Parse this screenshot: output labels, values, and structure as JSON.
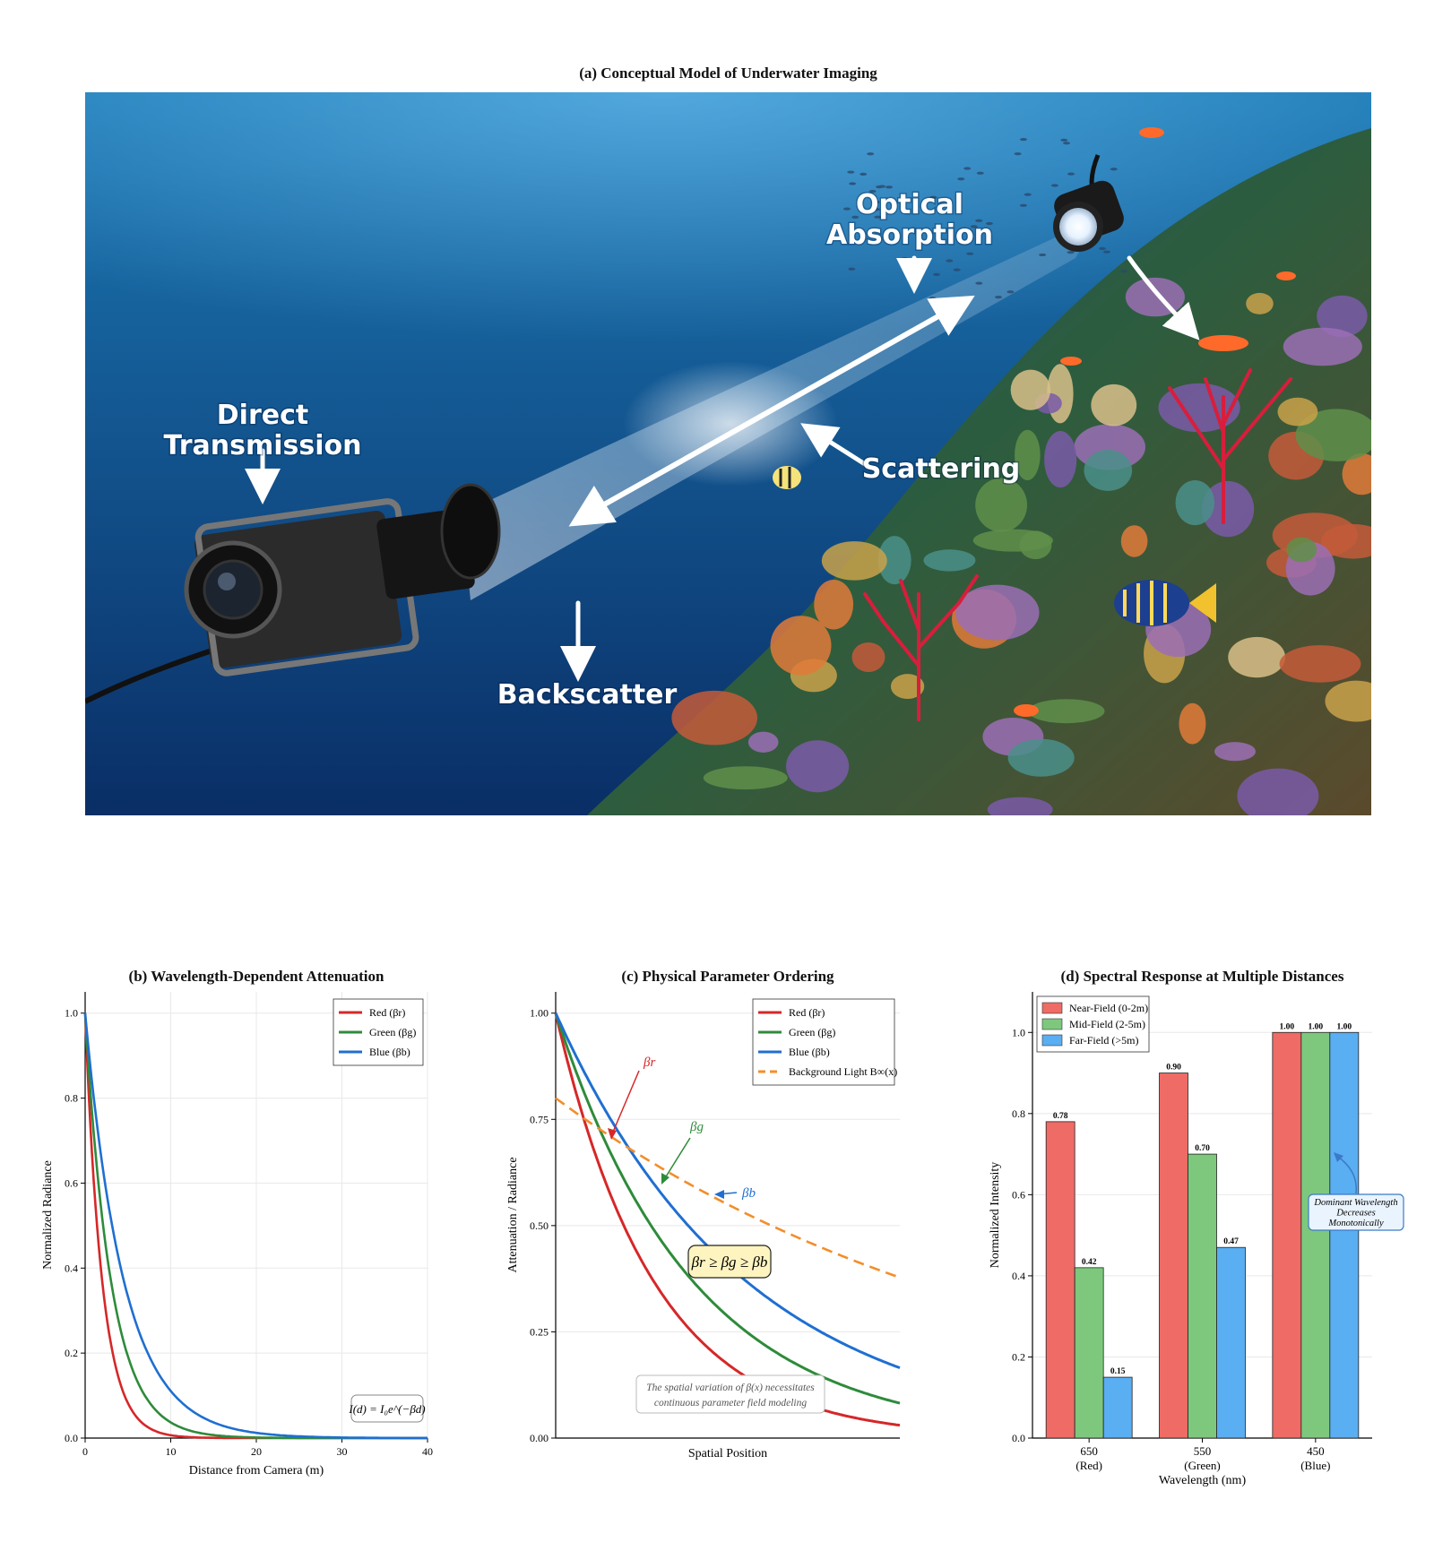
{
  "figure": {
    "panel_a": {
      "title": "(a) Conceptual Model of Underwater Imaging",
      "labels": {
        "direct": [
          "Direct",
          "Transmission"
        ],
        "absorption": [
          "Optical",
          "Absorption"
        ],
        "scattering": "Scattering",
        "backscatter": "Backscatter"
      },
      "colors": {
        "water_top": "#1b78b4",
        "water_bottom": "#0a2e66",
        "coral_red": "#d81e3c"
      }
    }
  },
  "chart_data": [
    {
      "id": "b",
      "type": "line",
      "title": "(b) Wavelength-Dependent Attenuation",
      "xlabel": "Distance from Camera (m)",
      "ylabel": "Normalized Radiance",
      "xlim": [
        0,
        40
      ],
      "ylim": [
        0,
        1.05
      ],
      "xticks": [
        0,
        10,
        20,
        30,
        40
      ],
      "yticks": [
        0.0,
        0.2,
        0.4,
        0.6,
        0.8,
        1.0
      ],
      "ytick_labels": [
        "0.0",
        "0.2",
        "0.4",
        "0.6",
        "0.8",
        "1.0"
      ],
      "grid": true,
      "legend": "top-right",
      "series": [
        {
          "name": "Red (βr)",
          "color": "#d62728",
          "model": "exp",
          "beta": 0.5
        },
        {
          "name": "Green (βg)",
          "color": "#2e8b3a",
          "model": "exp",
          "beta": 0.33
        },
        {
          "name": "Blue (βb)",
          "color": "#1f6fd1",
          "model": "exp",
          "beta": 0.22
        }
      ],
      "annotation": "I(d) = I₀e^(−βd)"
    },
    {
      "id": "c",
      "type": "line",
      "title": "(c) Physical Parameter Ordering",
      "xlabel": "Spatial Position",
      "ylabel": "Attenuation / Radiance",
      "xlim": [
        0,
        1
      ],
      "ylim": [
        0,
        1.05
      ],
      "yticks": [
        0.0,
        0.25,
        0.5,
        0.75,
        1.0
      ],
      "ytick_labels": [
        "0.00",
        "0.25",
        "0.50",
        "0.75",
        "1.00"
      ],
      "grid": true,
      "legend": "top-right",
      "series": [
        {
          "name": "Red (βr)",
          "color": "#d62728",
          "model": "exp",
          "beta": 3.5,
          "a": 1.0
        },
        {
          "name": "Green (βg)",
          "color": "#2e8b3a",
          "model": "exp",
          "beta": 2.5,
          "a": 1.0
        },
        {
          "name": "Blue (βb)",
          "color": "#1f6fd1",
          "model": "exp",
          "beta": 1.8,
          "a": 1.0
        },
        {
          "name": "Background Light B∞(x)",
          "color": "#f28e2b",
          "model": "exp",
          "beta": 0.75,
          "a": 0.8,
          "dashed": true
        }
      ],
      "annotations": {
        "beta_r": "βr",
        "beta_g": "βg",
        "beta_b": "βb",
        "ordering": "βr ≥ βg ≥ βb",
        "note": [
          "The spatial variation of β(x) necessitates",
          "continuous parameter field modeling"
        ]
      }
    },
    {
      "id": "d",
      "type": "bar",
      "title": "(d) Spectral Response at Multiple Distances",
      "xlabel": "Wavelength (nm)",
      "ylabel": "Normalized Intensity",
      "ylim": [
        0,
        1.1
      ],
      "yticks": [
        0.0,
        0.2,
        0.4,
        0.6,
        0.8,
        1.0
      ],
      "ytick_labels": [
        "0.0",
        "0.2",
        "0.4",
        "0.6",
        "0.8",
        "1.0"
      ],
      "grid": true,
      "legend": "top-left",
      "categories": [
        [
          "650",
          "(Red)"
        ],
        [
          "550",
          "(Green)"
        ],
        [
          "450",
          "(Blue)"
        ]
      ],
      "series": [
        {
          "name": "Near-Field (0-2m)",
          "color": "#ef6b66",
          "values": [
            0.78,
            0.9,
            1.0
          ],
          "labels": [
            "0.78",
            "0.90",
            "1.00"
          ]
        },
        {
          "name": "Mid-Field (2-5m)",
          "color": "#7ec87e",
          "values": [
            0.42,
            0.7,
            1.0
          ],
          "labels": [
            "0.42",
            "0.70",
            "1.00"
          ]
        },
        {
          "name": "Far-Field (>5m)",
          "color": "#5aaef2",
          "values": [
            0.15,
            0.47,
            1.0
          ],
          "labels": [
            "0.15",
            "0.47",
            "1.00"
          ]
        }
      ],
      "annotation": [
        "Dominant Wavelength",
        "Decreases",
        "Monotonically"
      ]
    }
  ]
}
